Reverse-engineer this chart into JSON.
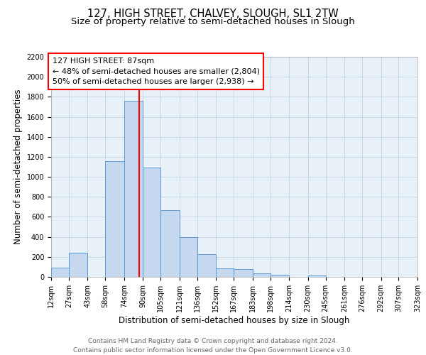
{
  "title": "127, HIGH STREET, CHALVEY, SLOUGH, SL1 2TW",
  "subtitle": "Size of property relative to semi-detached houses in Slough",
  "xlabel": "Distribution of semi-detached houses by size in Slough",
  "ylabel": "Number of semi-detached properties",
  "footer_line1": "Contains HM Land Registry data © Crown copyright and database right 2024.",
  "footer_line2": "Contains public sector information licensed under the Open Government Licence v3.0.",
  "bar_edges": [
    12,
    27,
    43,
    58,
    74,
    90,
    105,
    121,
    136,
    152,
    167,
    183,
    198,
    214,
    230,
    245,
    261,
    276,
    292,
    307,
    323
  ],
  "bar_heights": [
    90,
    240,
    0,
    1160,
    1760,
    1090,
    670,
    400,
    230,
    85,
    75,
    35,
    20,
    0,
    15,
    0,
    0,
    0,
    0,
    0
  ],
  "bar_color": "#c5d8f0",
  "bar_edgecolor": "#5b9bd5",
  "property_line_x": 87,
  "property_line_label": "127 HIGH STREET: 87sqm",
  "annotation_smaller": "← 48% of semi-detached houses are smaller (2,804)",
  "annotation_larger": "50% of semi-detached houses are larger (2,938) →",
  "ylim": [
    0,
    2200
  ],
  "tick_labels": [
    "12sqm",
    "27sqm",
    "43sqm",
    "58sqm",
    "74sqm",
    "90sqm",
    "105sqm",
    "121sqm",
    "136sqm",
    "152sqm",
    "167sqm",
    "183sqm",
    "198sqm",
    "214sqm",
    "230sqm",
    "245sqm",
    "261sqm",
    "276sqm",
    "292sqm",
    "307sqm",
    "323sqm"
  ],
  "background_color": "#ffffff",
  "plot_bg_color": "#e8f0f8",
  "grid_color": "#c8d8e8",
  "title_fontsize": 10.5,
  "subtitle_fontsize": 9.5,
  "axis_label_fontsize": 8.5,
  "tick_fontsize": 7,
  "annotation_fontsize": 8,
  "footer_fontsize": 6.5
}
